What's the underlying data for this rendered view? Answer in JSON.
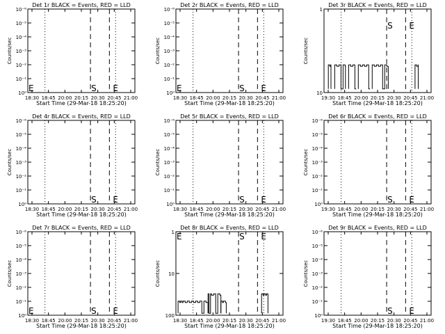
{
  "chart_data": [
    {
      "type": "line",
      "title": "Det 1r BLACK = Events, RED = LLD",
      "xlabel": "Start Time (29-Mar-18 18:25:20)",
      "ylabel": "Counts/sec",
      "scale": "log",
      "y_ticks": [
        "10⁰",
        "10⁻¹",
        "10⁻²",
        "10⁻³",
        "10⁻⁴",
        "10⁻⁵",
        "10⁻⁶"
      ],
      "x_ticks": [
        "18:30",
        "18:45",
        "20:00",
        "20:15",
        "20:30",
        "20:45",
        "21:00"
      ],
      "markers": [
        {
          "label": "E",
          "pos": "left"
        },
        {
          "label": "S",
          "pos": "dash1"
        },
        {
          "label": "E",
          "pos": "dash2"
        }
      ],
      "series": []
    },
    {
      "type": "line",
      "title": "Det 2r BLACK = Events, RED = LLD",
      "xlabel": "Start Time (29-Mar-18 18:25:20)",
      "ylabel": "Counts/sec",
      "scale": "log",
      "y_ticks": [
        "10⁰",
        "10⁻¹",
        "10⁻²",
        "10⁻³",
        "10⁻⁴",
        "10⁻⁵",
        "10⁻⁶"
      ],
      "x_ticks": [
        "18:30",
        "18:45",
        "20:00",
        "20:15",
        "20:30",
        "20:45",
        "21:00"
      ],
      "markers": [
        {
          "label": "E",
          "pos": "left"
        },
        {
          "label": "S",
          "pos": "dash1"
        },
        {
          "label": "E",
          "pos": "dash2"
        }
      ],
      "series": []
    },
    {
      "type": "line",
      "title": "Det 3r BLACK = Events, RED = LLD",
      "xlabel": "Start Time (29-Mar-18 18:25:20)",
      "ylabel": "Counts/sec",
      "scale": "log",
      "y_ticks": [
        "10",
        "1"
      ],
      "x_ticks": [
        "19:30",
        "18:45",
        "20:00",
        "20:15",
        "20:30",
        "20:45",
        "21:00"
      ],
      "markers": [
        {
          "label": "S",
          "pos": "dash1"
        },
        {
          "label": "E",
          "pos": "dash2"
        }
      ],
      "series": [
        {
          "mode": "bursts",
          "level": 2.0,
          "bursts": [
            [
              0.04,
              0.065
            ],
            [
              0.1,
              0.2
            ],
            [
              0.23,
              0.3
            ],
            [
              0.32,
              0.43
            ],
            [
              0.45,
              0.6
            ],
            [
              0.85,
              0.88
            ]
          ]
        }
      ]
    },
    {
      "type": "line",
      "title": "Det 4r BLACK = Events, RED = LLD",
      "xlabel": "Start Time (29-Mar-18 18:25:20)",
      "ylabel": "Counts/sec",
      "scale": "log",
      "y_ticks": [
        "10⁰",
        "10⁻¹",
        "10⁻²",
        "10⁻³",
        "10⁻⁴",
        "10⁻⁵",
        "10⁻⁶"
      ],
      "x_ticks": [
        "18:30",
        "18:45",
        "20:00",
        "20:15",
        "20:30",
        "20:45",
        "21:00"
      ],
      "markers": [
        {
          "label": "S",
          "pos": "dash1"
        },
        {
          "label": "E",
          "pos": "dash2"
        }
      ],
      "series": []
    },
    {
      "type": "line",
      "title": "Det 5r BLACK = Events, RED = LLD",
      "xlabel": "Start Time (29-Mar-18 18:25:20)",
      "ylabel": "Counts/sec",
      "scale": "log",
      "y_ticks": [
        "10⁰",
        "10⁻¹",
        "10⁻²",
        "10⁻³",
        "10⁻⁴",
        "10⁻⁵",
        "10⁻⁶"
      ],
      "x_ticks": [
        "18:30",
        "18:45",
        "20:00",
        "20:15",
        "20:30",
        "20:45",
        "21:00"
      ],
      "markers": [
        {
          "label": "S",
          "pos": "dash1"
        },
        {
          "label": "E",
          "pos": "dash2"
        }
      ],
      "series": []
    },
    {
      "type": "line",
      "title": "Det 6r BLACK = Events, RED = LLD",
      "xlabel": "Start Time (29-Mar-18 18:25:20)",
      "ylabel": "Counts/sec",
      "scale": "log",
      "y_ticks": [
        "10⁰",
        "10⁻¹",
        "10⁻²",
        "10⁻³",
        "10⁻⁴",
        "10⁻⁵",
        "10⁻⁶"
      ],
      "x_ticks": [
        "19:30",
        "18:45",
        "20:00",
        "20:15",
        "20:30",
        "20:45",
        "21:00"
      ],
      "markers": [
        {
          "label": "S",
          "pos": "dash1"
        },
        {
          "label": "E",
          "pos": "dash2"
        }
      ],
      "series": []
    },
    {
      "type": "line",
      "title": "Det 7r BLACK = Events, RED = LLD",
      "xlabel": "Start Time (29-Mar-18 18:25:20)",
      "ylabel": "Counts/sec",
      "scale": "log",
      "y_ticks": [
        "10⁰",
        "10⁻¹",
        "10⁻²",
        "10⁻³",
        "10⁻⁴",
        "10⁻⁵",
        "10⁻⁶"
      ],
      "x_ticks": [
        "18:30",
        "18:45",
        "20:00",
        "20:15",
        "20:30",
        "20:45",
        "21:00"
      ],
      "markers": [
        {
          "label": "E",
          "pos": "left"
        },
        {
          "label": "S",
          "pos": "dash1"
        },
        {
          "label": "E",
          "pos": "dash2"
        }
      ],
      "series": []
    },
    {
      "type": "line",
      "title": "Det 8r BLACK = Events, RED = LLD",
      "xlabel": "Start Time (29-Mar-18 18:25:20)",
      "ylabel": "Counts/sec",
      "scale": "log",
      "y_ticks": [
        "100",
        "10",
        "1"
      ],
      "x_ticks": [
        "18:30",
        "18:45",
        "20:00",
        "20:15",
        "20:30",
        "20:45",
        "21:00"
      ],
      "markers": [
        {
          "label": "E",
          "pos": "left"
        },
        {
          "label": "S",
          "pos": "dash1"
        },
        {
          "label": "E",
          "pos": "dash2"
        }
      ],
      "series": [
        {
          "mode": "bursts2",
          "low": 2.0,
          "high": 3.0,
          "bursts": [
            [
              0.02,
              0.3,
              "low"
            ],
            [
              0.3,
              0.42,
              "high"
            ],
            [
              0.42,
              0.47,
              "low"
            ],
            [
              0.8,
              0.86,
              "high"
            ]
          ]
        }
      ]
    },
    {
      "type": "line",
      "title": "Det 9r BLACK = Events, RED = LLD",
      "xlabel": "Start Time (29-Mar-18 18:25:20)",
      "ylabel": "Counts/sec",
      "scale": "log",
      "y_ticks": [
        "10⁰",
        "10⁻¹",
        "10⁻²",
        "10⁻³",
        "10⁻⁴",
        "10⁻⁵",
        "10⁻⁶"
      ],
      "x_ticks": [
        "19:30",
        "18:45",
        "20:00",
        "20:15",
        "20:30",
        "20:45",
        "21:00"
      ],
      "markers": [
        {
          "label": "S",
          "pos": "dash1"
        },
        {
          "label": "E",
          "pos": "dash2"
        }
      ],
      "series": []
    }
  ]
}
